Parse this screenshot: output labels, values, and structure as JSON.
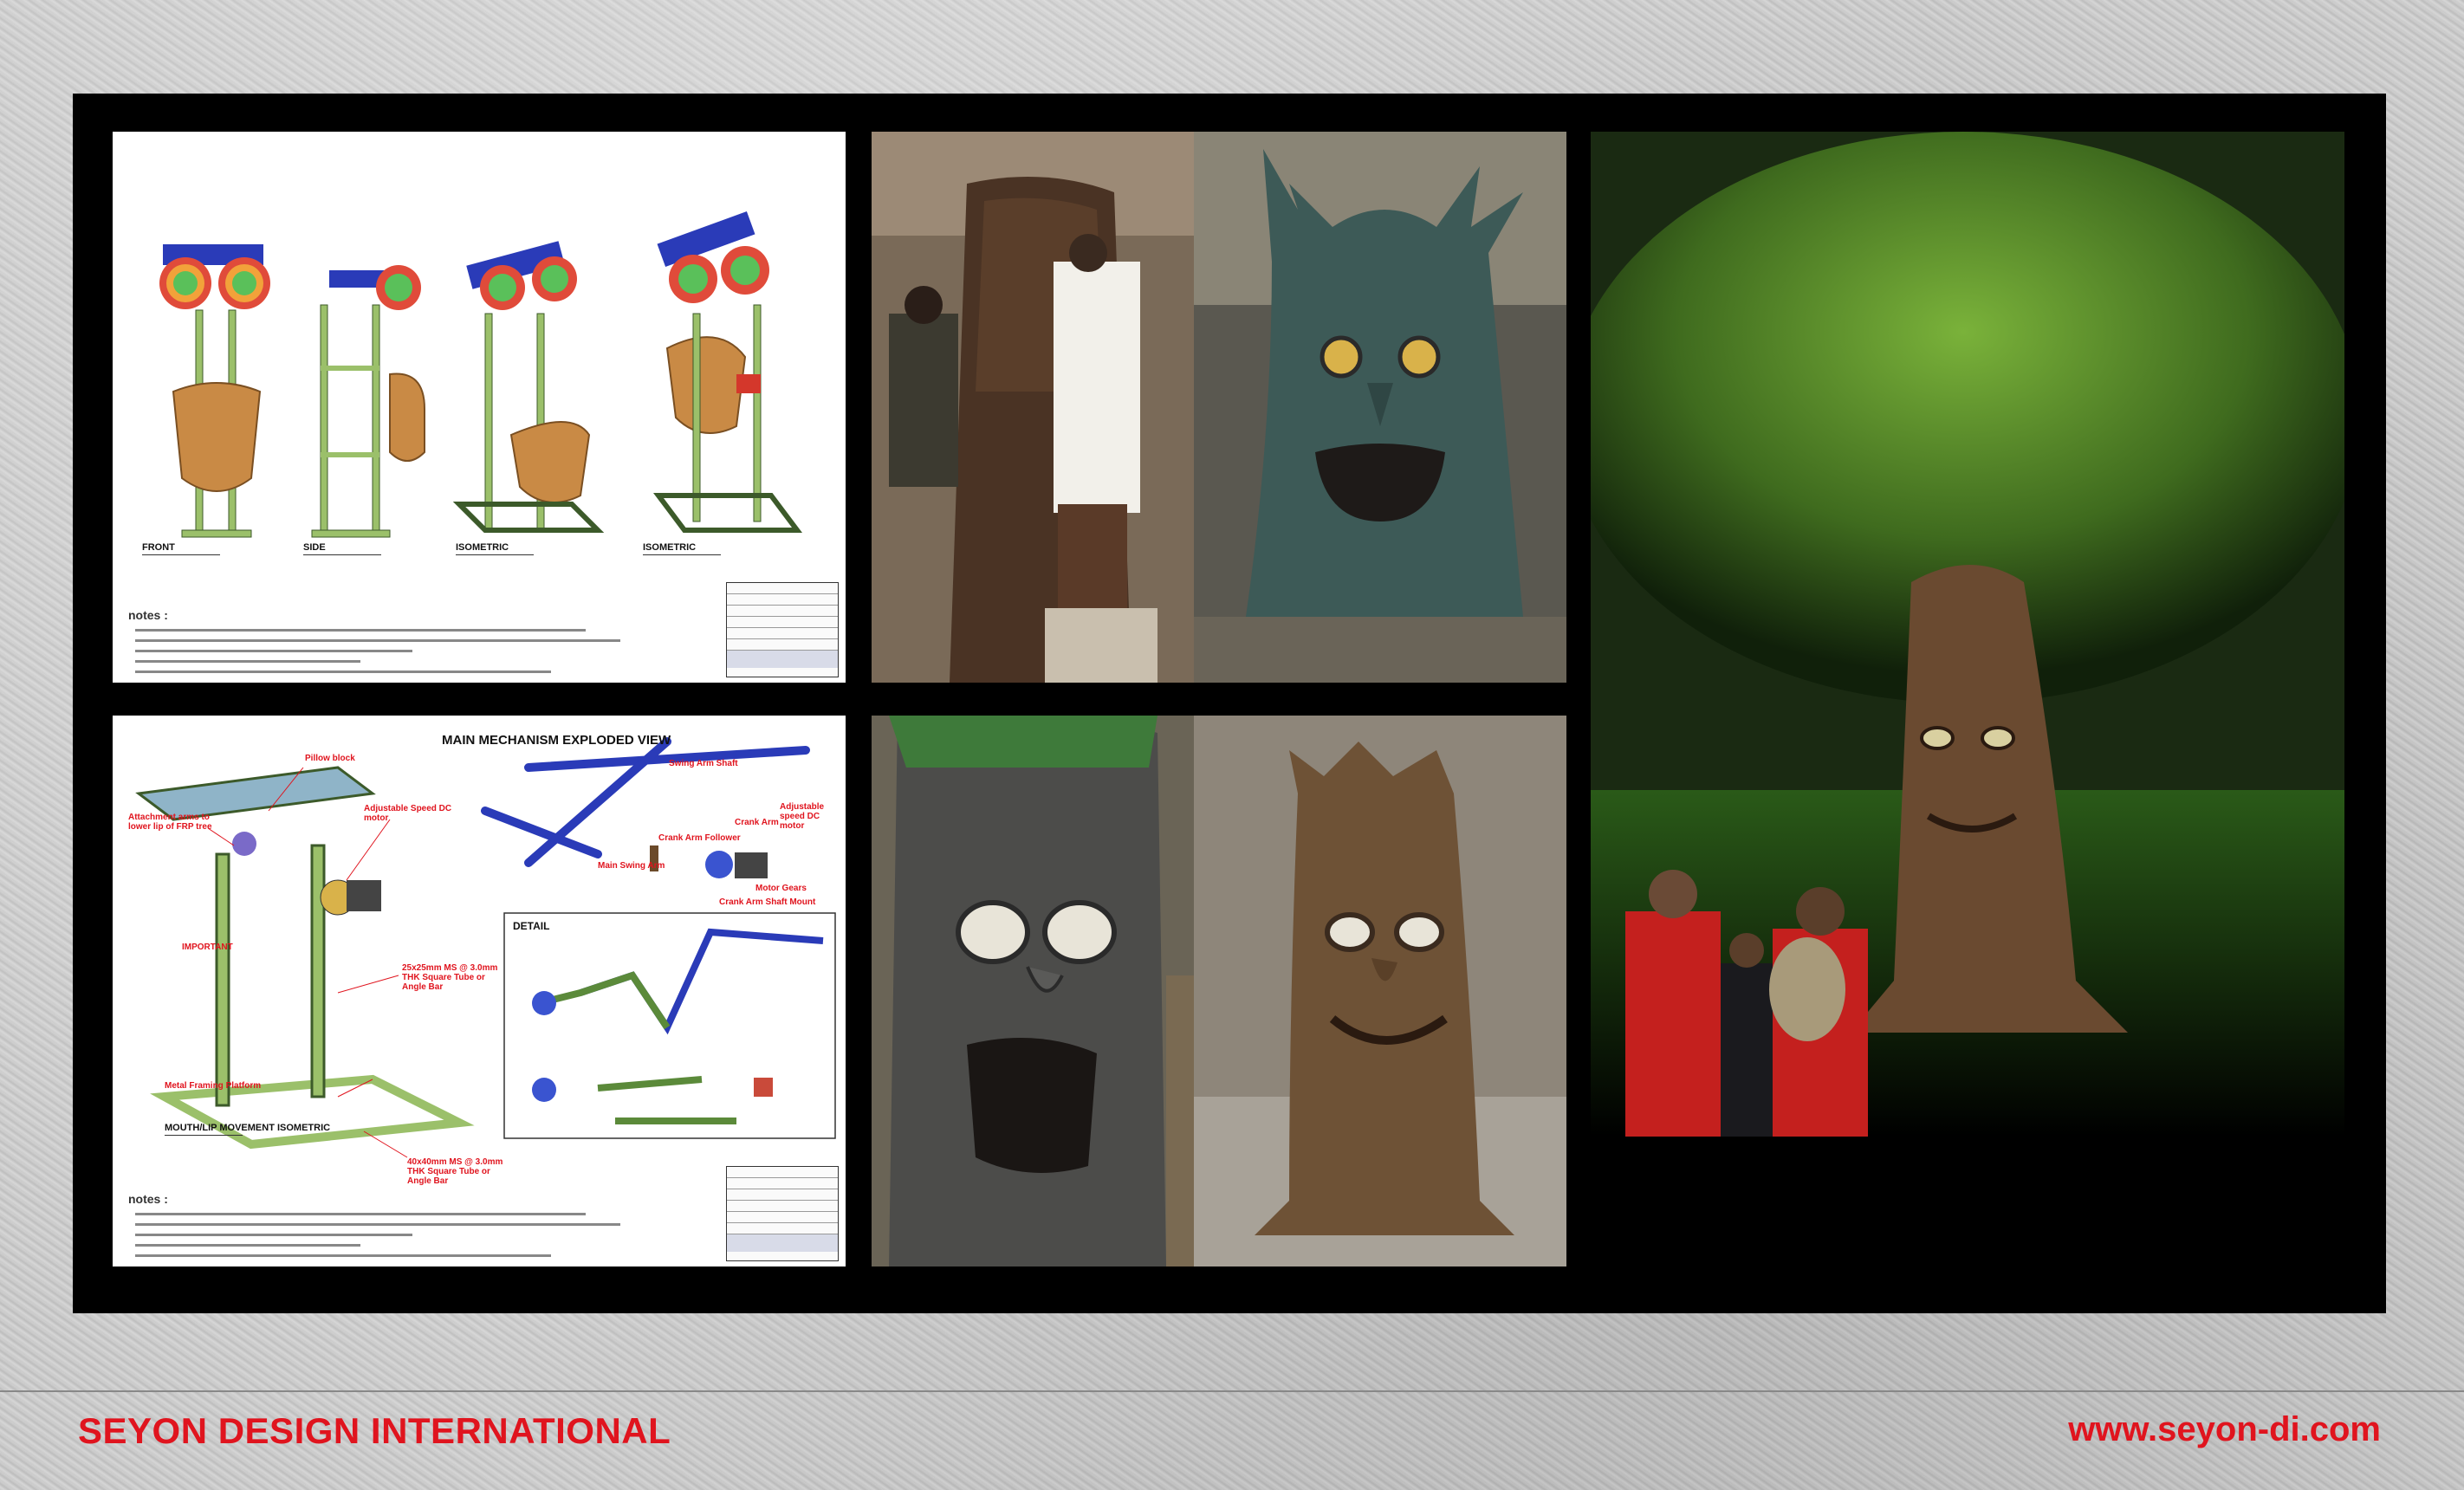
{
  "footer": {
    "brand": "SEYON DESIGN INTERNATIONAL",
    "website": "www.seyon-di.com"
  },
  "sheet_top": {
    "views": [
      "FRONT",
      "SIDE",
      "ISOMETRIC",
      "ISOMETRIC"
    ],
    "notes_heading": "notes :"
  },
  "sheet_bottom": {
    "title": "MAIN MECHANISM EXPLODED VIEW",
    "view_label": "MOUTH/LIP MOVEMENT ISOMETRIC",
    "detail_label": "DETAIL",
    "callouts": [
      "Pillow block",
      "Adjustable Speed DC motor",
      "Attachment arms to lower lip of FRP tree",
      "IMPORTANT",
      "25x25mm MS @ 3.0mm THK Square Tube or Angle Bar",
      "Metal Framing Platform",
      "40x40mm MS @ 3.0mm THK Square Tube or Angle Bar",
      "Swing Arm Shaft",
      "Adjustable speed DC motor",
      "Crank Arm",
      "Crank Arm Follower",
      "Main Swing Arm",
      "Motor Gears",
      "Crank Arm Shaft Mount"
    ],
    "notes_heading": "notes :"
  },
  "colors": {
    "accent": "#e0141e",
    "board": "#000000"
  }
}
